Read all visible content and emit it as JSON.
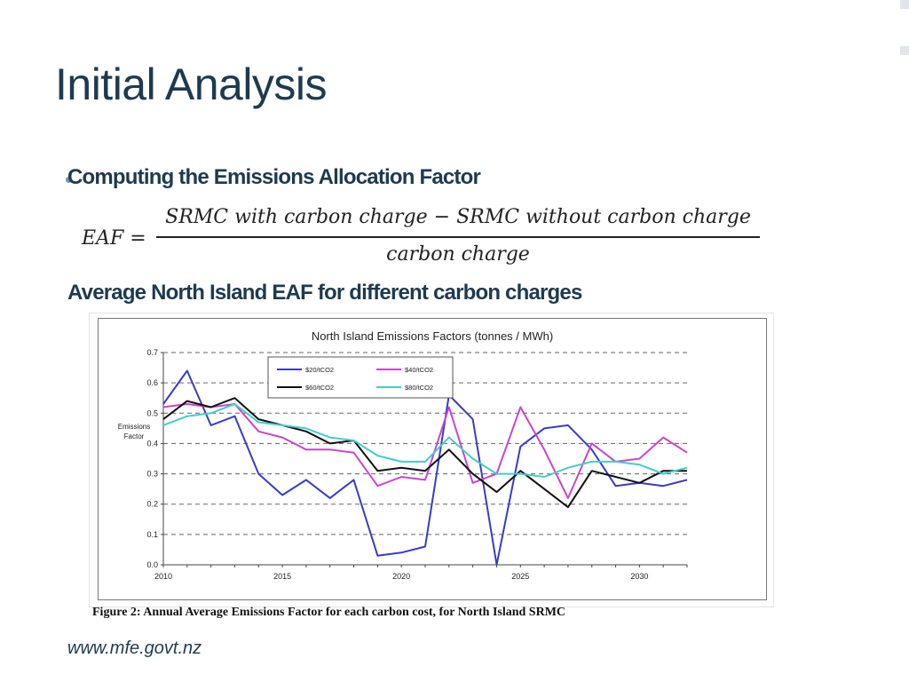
{
  "slide": {
    "title": "Initial Analysis",
    "bullet": "Computing the Emissions Allocation Factor",
    "formula": {
      "lhs": "EAF =",
      "numerator": "SRMC with carbon charge  − SRMC without carbon charge",
      "denominator": "carbon charge"
    },
    "subheading": "Average North Island EAF for different carbon charges",
    "caption": "Figure 2:  Annual Average Emissions Factor for each carbon cost, for North Island SRMC",
    "footer": "www.mfe.govt.nz"
  },
  "chart_data": {
    "type": "line",
    "title": "North Island Emissions Factors (tonnes / MWh)",
    "ylabel_lines": [
      "Emissions",
      "Factor"
    ],
    "xlabel": "",
    "x": [
      2010,
      2011,
      2012,
      2013,
      2014,
      2015,
      2016,
      2017,
      2018,
      2019,
      2020,
      2021,
      2022,
      2023,
      2024,
      2025,
      2026,
      2027,
      2028,
      2029,
      2030,
      2031,
      2032
    ],
    "xlim": [
      2010,
      2032
    ],
    "ylim": [
      0,
      0.7
    ],
    "xticks": [
      2010,
      2015,
      2020,
      2025,
      2030
    ],
    "xtick_labels": [
      "2010",
      "2015",
      "2020",
      "2025",
      "2030"
    ],
    "yticks": [
      0,
      0.1,
      0.2,
      0.3,
      0.4,
      0.5,
      0.6,
      0.7
    ],
    "ytick_labels": [
      "0.0",
      "0.1",
      "0.2",
      "0.3",
      "0.4",
      "0.5",
      "0.6",
      "0.7"
    ],
    "grid": "horizontal dashed",
    "legend_position": "top-left",
    "series": [
      {
        "name": "$20/tCO2",
        "color": "#3a3acc",
        "values": [
          0.53,
          0.64,
          0.46,
          0.49,
          0.3,
          0.23,
          0.28,
          0.22,
          0.28,
          0.03,
          0.04,
          0.06,
          0.56,
          0.48,
          0.0,
          0.39,
          0.45,
          0.46,
          0.38,
          0.26,
          0.27,
          0.26,
          0.28
        ]
      },
      {
        "name": "$40/tCO2",
        "color": "#cc44cc",
        "values": [
          0.52,
          0.53,
          0.52,
          0.53,
          0.44,
          0.42,
          0.38,
          0.38,
          0.37,
          0.26,
          0.29,
          0.28,
          0.52,
          0.27,
          0.3,
          0.52,
          0.38,
          0.22,
          0.4,
          0.34,
          0.35,
          0.42,
          0.37
        ]
      },
      {
        "name": "$60/tCO2",
        "color": "#111111",
        "values": [
          0.48,
          0.54,
          0.52,
          0.55,
          0.48,
          0.46,
          0.44,
          0.4,
          0.41,
          0.31,
          0.32,
          0.31,
          0.38,
          0.3,
          0.24,
          0.31,
          0.25,
          0.19,
          0.31,
          0.29,
          0.27,
          0.31,
          0.31
        ]
      },
      {
        "name": "$80/tCO2",
        "color": "#44cccc",
        "values": [
          0.46,
          0.49,
          0.5,
          0.53,
          0.47,
          0.46,
          0.45,
          0.42,
          0.41,
          0.36,
          0.34,
          0.34,
          0.42,
          0.35,
          0.3,
          0.3,
          0.29,
          0.32,
          0.34,
          0.34,
          0.33,
          0.3,
          0.32
        ]
      }
    ]
  }
}
